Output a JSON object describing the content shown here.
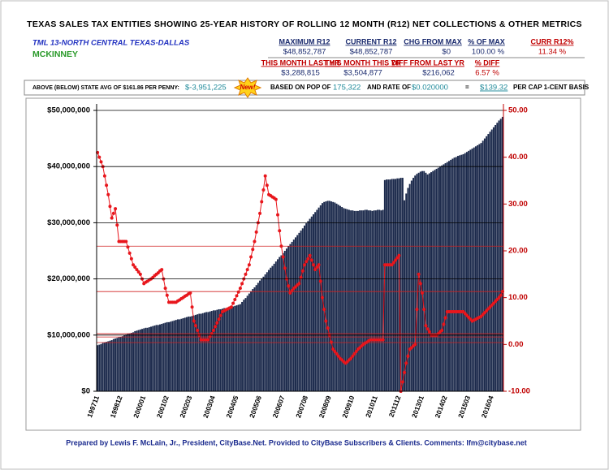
{
  "header": {
    "title": "TEXAS SALES TAX ENTITIES SHOWING 25-YEAR HISTORY OF ROLLING 12 MONTH (R12) NET COLLECTIONS & OTHER METRICS",
    "region": "TML 13-NORTH CENTRAL TEXAS-DALLAS",
    "city": "MCKINNEY",
    "row1_labels": [
      "MAXIMUM R12",
      "CURRENT R12",
      "CHG FROM MAX",
      "% OF MAX",
      "CURR R12%"
    ],
    "row1_values": [
      "$48,852,787",
      "$48,852,787",
      "$0",
      "100.00 %",
      "11.34 %"
    ],
    "row2_labels": [
      "THIS MONTH LAST YR",
      "THIS MONTH THIS YR",
      "DIFF FROM LAST YR",
      "% DIFF"
    ],
    "row2_values": [
      "$3,288,815",
      "$3,504,877",
      "$216,062",
      "6.57 %"
    ],
    "row3": {
      "state_avg_label": "ABOVE (BELOW) STATE AVG OF $161.86 PER PENNY:",
      "state_avg_value": "$-3,951,225",
      "new_badge": "New!",
      "pop_label": "BASED ON POP OF",
      "pop_value": "175,322",
      "rate_label": "AND RATE OF",
      "rate_value": "$0.020000",
      "equals": "=",
      "per_cap_value": "$139.32",
      "per_cap_label": "PER CAP 1-CENT BASIS"
    },
    "footer": "Prepared by Lewis F. McLain, Jr., President, CityBase.Net. Provided to CityBase Subscribers & Clients. Comments: lfm@citybase.net"
  },
  "chart_data": {
    "type": "bar_line",
    "categories": [
      "199711",
      null,
      null,
      null,
      null,
      null,
      null,
      null,
      null,
      null,
      null,
      null,
      null,
      "199812",
      null,
      null,
      null,
      null,
      null,
      null,
      null,
      null,
      null,
      null,
      null,
      null,
      "200001",
      null,
      null,
      null,
      null,
      null,
      null,
      null,
      null,
      null,
      null,
      null,
      null,
      "200102",
      null,
      null,
      null,
      null,
      null,
      null,
      null,
      null,
      null,
      null,
      null,
      null,
      "200203",
      null,
      null,
      null,
      null,
      null,
      null,
      null,
      null,
      null,
      null,
      null,
      null,
      "200304",
      null,
      null,
      null,
      null,
      null,
      null,
      null,
      null,
      null,
      null,
      null,
      null,
      "200405",
      null,
      null,
      null,
      null,
      null,
      null,
      null,
      null,
      null,
      null,
      null,
      null,
      "200506",
      null,
      null,
      null,
      null,
      null,
      null,
      null,
      null,
      null,
      null,
      null,
      null,
      "200607",
      null,
      null,
      null,
      null,
      null,
      null,
      null,
      null,
      null,
      null,
      null,
      null,
      "200708",
      null,
      null,
      null,
      null,
      null,
      null,
      null,
      null,
      null,
      null,
      null,
      null,
      "200809",
      null,
      null,
      null,
      null,
      null,
      null,
      null,
      null,
      null,
      null,
      null,
      null,
      "200910",
      null,
      null,
      null,
      null,
      null,
      null,
      null,
      null,
      null,
      null,
      null,
      null,
      "201011",
      null,
      null,
      null,
      null,
      null,
      null,
      null,
      null,
      null,
      null,
      null,
      null,
      "201112",
      null,
      null,
      null,
      null,
      null,
      null,
      null,
      null,
      null,
      null,
      null,
      null,
      "201301",
      null,
      null,
      null,
      null,
      null,
      null,
      null,
      null,
      null,
      null,
      null,
      null,
      "201402",
      null,
      null,
      null,
      null,
      null,
      null,
      null,
      null,
      null,
      null,
      null,
      null,
      "201503",
      null,
      null,
      null,
      null,
      null,
      null,
      null,
      null,
      null,
      null,
      null,
      null,
      "201604",
      null,
      null,
      null,
      null,
      null,
      null
    ],
    "series": [
      {
        "color": "#1c2a4c",
        "values": [
          8200000,
          8300000,
          8400000,
          8600000,
          8700000,
          8800000,
          8900000,
          9000000,
          9100000,
          9300000,
          9400000,
          9500000,
          9600000,
          9700000,
          9800000,
          10000000,
          10100000,
          10200000,
          10300000,
          10400000,
          10500000,
          10700000,
          10800000,
          10900000,
          11000000,
          11100000,
          11200000,
          11300000,
          11300000,
          11400000,
          11500000,
          11600000,
          11700000,
          11800000,
          11800000,
          11900000,
          12000000,
          12100000,
          12200000,
          12300000,
          12300000,
          12400000,
          12500000,
          12600000,
          12700000,
          12800000,
          12800000,
          12900000,
          13000000,
          13100000,
          13200000,
          13300000,
          13300000,
          13400000,
          13500000,
          13600000,
          13700000,
          13800000,
          13800000,
          13900000,
          14000000,
          14100000,
          14100000,
          14200000,
          14300000,
          14400000,
          14400000,
          14500000,
          14600000,
          14600000,
          14700000,
          14800000,
          14800000,
          14900000,
          15000000,
          15000000,
          15100000,
          15200000,
          15300000,
          15400000,
          15500000,
          15900000,
          16300000,
          16600000,
          17000000,
          17400000,
          17800000,
          18200000,
          18500000,
          18900000,
          19300000,
          19700000,
          20100000,
          20400000,
          20800000,
          21200000,
          21600000,
          22000000,
          22300000,
          22700000,
          23100000,
          23500000,
          23900000,
          24200000,
          24600000,
          25000000,
          25400000,
          25800000,
          26200000,
          26600000,
          27000000,
          27400000,
          27800000,
          28200000,
          28600000,
          29000000,
          29500000,
          29900000,
          30300000,
          30700000,
          31100000,
          31500000,
          31900000,
          32300000,
          32700000,
          33100000,
          33500000,
          33700000,
          33800000,
          33900000,
          33900000,
          33800000,
          33700000,
          33600000,
          33400000,
          33200000,
          33000000,
          32800000,
          32600000,
          32500000,
          32400000,
          32300000,
          32200000,
          32200000,
          32100000,
          32100000,
          32100000,
          32200000,
          32200000,
          32200000,
          32300000,
          32300000,
          32200000,
          32200000,
          32100000,
          32200000,
          32200000,
          32300000,
          32300000,
          32200000,
          32300000,
          37600000,
          37700000,
          37700000,
          37700000,
          37800000,
          37800000,
          37800000,
          37900000,
          37900000,
          38000000,
          38000000,
          34000000,
          35200000,
          36200000,
          36900000,
          37500000,
          38000000,
          38400000,
          38700000,
          38900000,
          39100000,
          39200000,
          39200000,
          38900000,
          38600000,
          38800000,
          39000000,
          39200000,
          39400000,
          39600000,
          39800000,
          40000000,
          40200000,
          40400000,
          40600000,
          40800000,
          41000000,
          41200000,
          41400000,
          41600000,
          41700000,
          41900000,
          42000000,
          42100000,
          42200000,
          42400000,
          42600000,
          42800000,
          43000000,
          43200000,
          43400000,
          43600000,
          43800000,
          44000000,
          44200000,
          44600000,
          45000000,
          45400000,
          45800000,
          46200000,
          46600000,
          47000000,
          47400000,
          47800000,
          48200000,
          48500000,
          48852787
        ]
      },
      {
        "color": "#e8161c",
        "axis": "y2",
        "values": [
          41,
          40,
          39,
          38,
          36,
          34,
          32,
          29.5,
          27,
          28,
          29,
          25.5,
          22,
          22,
          22,
          22,
          22,
          20.8,
          19.5,
          18.3,
          17,
          16.5,
          16,
          15.5,
          15,
          14,
          13,
          13.3,
          13.5,
          13.8,
          14,
          14.3,
          14.7,
          15,
          15.3,
          15.7,
          16,
          14,
          12,
          10.5,
          9,
          9,
          9,
          9,
          9,
          9.3,
          9.5,
          9.8,
          10,
          10.3,
          10.5,
          10.8,
          11,
          8,
          5,
          4,
          3,
          2,
          1,
          1,
          1,
          1,
          1,
          1.7,
          2.3,
          3,
          3.8,
          4.6,
          5.4,
          6.2,
          7,
          7.2,
          7.4,
          7.6,
          7.8,
          8,
          8.8,
          9.6,
          10.4,
          11.2,
          12,
          13,
          14,
          15,
          16,
          17,
          18.7,
          20.3,
          22,
          24,
          26,
          28,
          30.5,
          33,
          36,
          34,
          32,
          31.8,
          31.5,
          31.3,
          31,
          27.7,
          24.3,
          21,
          18.7,
          16.3,
          14,
          12.5,
          11,
          11.5,
          12,
          12.3,
          12.7,
          13,
          14.3,
          15.7,
          17,
          17.7,
          18.3,
          19,
          18,
          17,
          16,
          16.5,
          17,
          13.5,
          10,
          7.5,
          5,
          3.5,
          2,
          0.5,
          -1,
          -1.5,
          -2,
          -2.5,
          -3,
          -3.3,
          -3.7,
          -4,
          -3.7,
          -3.3,
          -3,
          -2.5,
          -2,
          -1.5,
          -1,
          -0.7,
          -0.3,
          0,
          0.3,
          0.5,
          0.8,
          1,
          1,
          1,
          1,
          1,
          1,
          1,
          1,
          17,
          17,
          17,
          17,
          17,
          17.5,
          18,
          18.5,
          19,
          -10,
          -8,
          -6,
          -4,
          -2.5,
          -1,
          -0.7,
          -0.3,
          0,
          7.5,
          15,
          13,
          11,
          7.5,
          4,
          3.3,
          2.7,
          2,
          2,
          2,
          2,
          2.3,
          2.7,
          3,
          4.3,
          5.7,
          7,
          7,
          7,
          7,
          7,
          7,
          7,
          7,
          7,
          7,
          6.6,
          6.2,
          5.8,
          5.4,
          5,
          5.2,
          5.4,
          5.6,
          5.8,
          6,
          6.4,
          6.8,
          7.2,
          7.6,
          8,
          8.4,
          8.8,
          9.2,
          9.6,
          10,
          10.5,
          11.34
        ]
      }
    ],
    "ylim": [
      0,
      50000000
    ],
    "yticks": [
      {
        "value": 0,
        "label": "$0"
      },
      {
        "value": 10000000,
        "label": "$10,000,000"
      },
      {
        "value": 20000000,
        "label": "$20,000,000"
      },
      {
        "value": 30000000,
        "label": "$30,000,000"
      },
      {
        "value": 40000000,
        "label": "$40,000,000"
      },
      {
        "value": 50000000,
        "label": "$50,000,000"
      }
    ],
    "y2lim": [
      -10,
      50
    ],
    "y2ticks": [
      {
        "value": -10,
        "label": "-10.00"
      },
      {
        "value": 0,
        "label": "0.00"
      },
      {
        "value": 10,
        "label": "10.00"
      },
      {
        "value": 20,
        "label": "20.00"
      },
      {
        "value": 30,
        "label": "30.00"
      },
      {
        "value": 40,
        "label": "40.00"
      },
      {
        "value": 50,
        "label": "50.00"
      }
    ],
    "y2_reference_lines": [
      21,
      11.3,
      2.3,
      1.6,
      0.4
    ],
    "reference_color": "#d02020",
    "grid": true
  }
}
